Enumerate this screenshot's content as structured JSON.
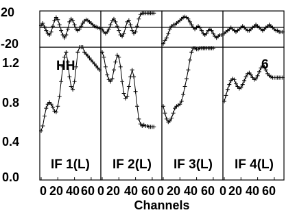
{
  "chart_data": {
    "type": "line",
    "xlabel": "Channels",
    "x_ticks": [
      "0",
      "20",
      "40",
      "60"
    ],
    "xlim": [
      0,
      70
    ],
    "top_row": {
      "ylim": [
        -25,
        25
      ],
      "yticks": [
        "20",
        "-20"
      ],
      "zero_line": true
    },
    "bottom_row": {
      "ylim": [
        0,
        1.35
      ],
      "yticks": [
        "1.2",
        "0.8",
        "0.4",
        "0.0"
      ]
    },
    "annotations": {
      "pol_label": "HH",
      "index_label": "6"
    },
    "panels": [
      {
        "label": "IF 1(L)",
        "bottom_series": {
          "x": [
            0,
            2,
            4,
            6,
            8,
            10,
            12,
            14,
            16,
            18,
            20,
            22,
            24,
            26,
            28,
            30,
            32,
            34,
            36,
            38,
            40,
            42,
            44,
            46,
            48,
            50,
            52,
            54,
            56,
            58,
            60,
            62,
            64,
            66,
            68,
            70
          ],
          "y": [
            0.5,
            0.55,
            0.65,
            0.73,
            0.77,
            0.79,
            0.77,
            0.74,
            0.7,
            0.69,
            0.75,
            0.85,
            1.0,
            1.15,
            1.25,
            1.3,
            1.2,
            1.05,
            0.95,
            0.92,
            1.0,
            1.15,
            1.3,
            1.38,
            1.42,
            1.38,
            1.3,
            1.28,
            1.26,
            1.24,
            1.22,
            1.2,
            1.18,
            1.16,
            1.14,
            1.12
          ]
        },
        "top_series": {
          "x": [
            0,
            2,
            4,
            6,
            8,
            10,
            12,
            14,
            16,
            18,
            20,
            22,
            24,
            26,
            28,
            30,
            32,
            34,
            36,
            38,
            40,
            42,
            44,
            46,
            48,
            50,
            52,
            54,
            56,
            58,
            60,
            62,
            64,
            66,
            68,
            70
          ],
          "y": [
            5,
            8,
            3,
            -2,
            -6,
            -8,
            -4,
            4,
            12,
            16,
            13,
            6,
            -2,
            -8,
            -12,
            -8,
            0,
            10,
            14,
            12,
            6,
            0,
            -2,
            0,
            4,
            8,
            11,
            13,
            12,
            10,
            8,
            6,
            4,
            3,
            2,
            1
          ]
        }
      },
      {
        "label": "IF 2(L)",
        "bottom_series": {
          "x": [
            0,
            2,
            4,
            6,
            8,
            10,
            12,
            14,
            16,
            18,
            20,
            22,
            24,
            26,
            28,
            30,
            32,
            34,
            36,
            38,
            40,
            42,
            44,
            46,
            48,
            50,
            52,
            54,
            56,
            58,
            60,
            62
          ],
          "y": [
            1.3,
            1.25,
            1.15,
            1.07,
            1.02,
            1.0,
            1.03,
            1.12,
            1.2,
            1.27,
            1.25,
            1.15,
            1.0,
            0.88,
            0.83,
            0.85,
            0.95,
            1.05,
            1.12,
            1.05,
            0.9,
            0.75,
            0.62,
            0.57,
            0.55,
            0.56,
            0.55,
            0.55,
            0.54,
            0.54,
            0.54,
            0.54
          ]
        },
        "top_series": {
          "x": [
            0,
            2,
            4,
            6,
            8,
            10,
            12,
            14,
            16,
            18,
            20,
            22,
            24,
            26,
            28,
            30,
            32,
            34,
            36,
            38,
            40,
            42,
            44,
            46,
            48,
            50,
            52,
            54,
            56,
            58,
            60,
            62
          ],
          "y": [
            0,
            -4,
            -6,
            -4,
            0,
            6,
            12,
            14,
            10,
            4,
            -2,
            -8,
            -10,
            -6,
            2,
            10,
            12,
            6,
            -2,
            -6,
            -4,
            4,
            14,
            20,
            22,
            22,
            22,
            22,
            22,
            22,
            22,
            22
          ]
        }
      },
      {
        "label": "IF 3(L)",
        "bottom_series": {
          "x": [
            0,
            2,
            4,
            6,
            8,
            10,
            12,
            14,
            16,
            18,
            20,
            22,
            24,
            26,
            28,
            30,
            32,
            34,
            36,
            38,
            40,
            42,
            44,
            46,
            48,
            50,
            52,
            54,
            56,
            58,
            60
          ],
          "y": [
            0.75,
            0.68,
            0.62,
            0.59,
            0.6,
            0.63,
            0.68,
            0.73,
            0.75,
            0.76,
            0.77,
            0.8,
            0.87,
            0.95,
            1.03,
            1.12,
            1.22,
            1.3,
            1.34,
            1.34,
            1.33,
            1.33,
            1.34,
            1.34,
            1.34,
            1.34,
            1.34,
            1.34,
            1.34,
            1.34,
            1.34
          ]
        },
        "top_series": {
          "x": [
            0,
            2,
            4,
            6,
            8,
            10,
            12,
            14,
            16,
            18,
            20,
            22,
            24,
            26,
            28,
            30,
            32,
            34,
            36,
            38,
            40,
            42,
            44,
            46,
            48,
            50,
            52,
            54,
            56,
            58,
            60,
            62,
            64,
            66,
            68,
            70
          ],
          "y": [
            -20,
            -16,
            -12,
            -6,
            0,
            4,
            6,
            6,
            8,
            10,
            12,
            14,
            16,
            17,
            16,
            14,
            10,
            6,
            2,
            0,
            2,
            4,
            2,
            -2,
            -6,
            -8,
            -6,
            -2,
            0,
            -2,
            -6,
            -10,
            -12,
            -10,
            -8,
            -8
          ]
        }
      },
      {
        "label": "IF 4(L)",
        "bottom_series": {
          "x": [
            0,
            2,
            4,
            6,
            8,
            10,
            12,
            14,
            16,
            18,
            20,
            22,
            24,
            26,
            28,
            30,
            32,
            34,
            36,
            38,
            40,
            42,
            44,
            46,
            48,
            50,
            52,
            54,
            56,
            58,
            60,
            62,
            64,
            66,
            68,
            70
          ],
          "y": [
            0.8,
            0.86,
            0.92,
            0.97,
            1.01,
            1.03,
            1.02,
            0.98,
            0.95,
            0.93,
            0.94,
            0.97,
            1.01,
            1.05,
            1.08,
            1.09,
            1.07,
            1.04,
            1.02,
            1.03,
            1.06,
            1.1,
            1.14,
            1.16,
            1.15,
            1.12,
            1.08,
            1.06,
            1.05,
            1.04,
            1.04,
            1.04,
            1.04,
            1.04,
            1.04,
            1.04
          ]
        },
        "top_series": {
          "x": [
            0,
            2,
            4,
            6,
            8,
            10,
            12,
            14,
            16,
            18,
            20,
            22,
            24,
            26,
            28,
            30,
            32,
            34,
            36,
            38,
            40,
            42,
            44,
            46,
            48,
            50,
            52,
            54,
            56,
            58,
            60,
            62,
            64,
            66,
            68,
            70
          ],
          "y": [
            -6,
            -4,
            -2,
            0,
            2,
            0,
            -2,
            -4,
            -2,
            0,
            2,
            4,
            2,
            0,
            -2,
            -2,
            0,
            2,
            4,
            6,
            4,
            2,
            0,
            -2,
            0,
            2,
            4,
            6,
            4,
            2,
            0,
            -2,
            -2,
            -4,
            -4,
            -4
          ]
        }
      }
    ]
  }
}
